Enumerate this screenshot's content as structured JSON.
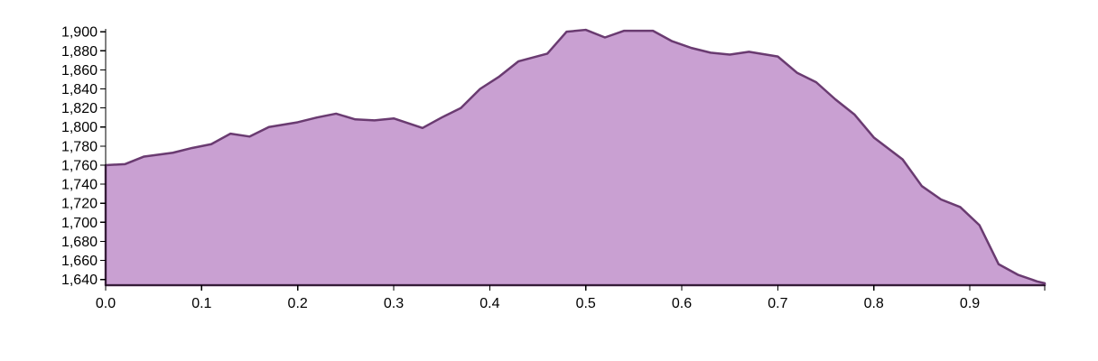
{
  "chart_data": {
    "type": "area",
    "title": "",
    "xlabel": "",
    "ylabel": "",
    "xlim": [
      0,
      0.978
    ],
    "ylim": [
      1634,
      1903
    ],
    "x_ticks": [
      {
        "value": 0.0,
        "label": "0.0"
      },
      {
        "value": 0.1,
        "label": "0.1"
      },
      {
        "value": 0.2,
        "label": "0.2"
      },
      {
        "value": 0.3,
        "label": "0.3"
      },
      {
        "value": 0.4,
        "label": "0.4"
      },
      {
        "value": 0.5,
        "label": "0.5"
      },
      {
        "value": 0.6,
        "label": "0.6"
      },
      {
        "value": 0.7,
        "label": "0.7"
      },
      {
        "value": 0.8,
        "label": "0.8"
      },
      {
        "value": 0.9,
        "label": "0.9"
      }
    ],
    "y_ticks": [
      {
        "value": 1640,
        "label": "1,640"
      },
      {
        "value": 1660,
        "label": "1,660"
      },
      {
        "value": 1680,
        "label": "1,680"
      },
      {
        "value": 1700,
        "label": "1,700"
      },
      {
        "value": 1720,
        "label": "1,720"
      },
      {
        "value": 1740,
        "label": "1,740"
      },
      {
        "value": 1760,
        "label": "1,760"
      },
      {
        "value": 1780,
        "label": "1,780"
      },
      {
        "value": 1800,
        "label": "1,800"
      },
      {
        "value": 1820,
        "label": "1,820"
      },
      {
        "value": 1840,
        "label": "1,840"
      },
      {
        "value": 1860,
        "label": "1,860"
      },
      {
        "value": 1880,
        "label": "1,880"
      },
      {
        "value": 1900,
        "label": "1,900"
      }
    ],
    "grid": false,
    "legend": "none",
    "colors": {
      "fill": "#c9a0d2",
      "stroke": "#6a3b71"
    },
    "series": [
      {
        "x": [
          0.0,
          0.02,
          0.04,
          0.07,
          0.09,
          0.11,
          0.13,
          0.15,
          0.17,
          0.2,
          0.22,
          0.24,
          0.26,
          0.28,
          0.3,
          0.33,
          0.35,
          0.37,
          0.39,
          0.41,
          0.43,
          0.46,
          0.48,
          0.5,
          0.52,
          0.54,
          0.57,
          0.59,
          0.61,
          0.63,
          0.65,
          0.67,
          0.7,
          0.72,
          0.74,
          0.76,
          0.78,
          0.8,
          0.83,
          0.85,
          0.87,
          0.89,
          0.91,
          0.93,
          0.95,
          0.97,
          0.978
        ],
        "y": [
          1760,
          1761,
          1769,
          1773,
          1778,
          1782,
          1793,
          1790,
          1800,
          1805,
          1810,
          1814,
          1808,
          1807,
          1809,
          1799,
          1810,
          1820,
          1840,
          1853,
          1869,
          1877,
          1900,
          1902,
          1894,
          1901,
          1901,
          1890,
          1883,
          1878,
          1876,
          1879,
          1874,
          1857,
          1847,
          1829,
          1813,
          1789,
          1766,
          1738,
          1724,
          1716,
          1697,
          1656,
          1645,
          1638,
          1636
        ]
      }
    ]
  }
}
